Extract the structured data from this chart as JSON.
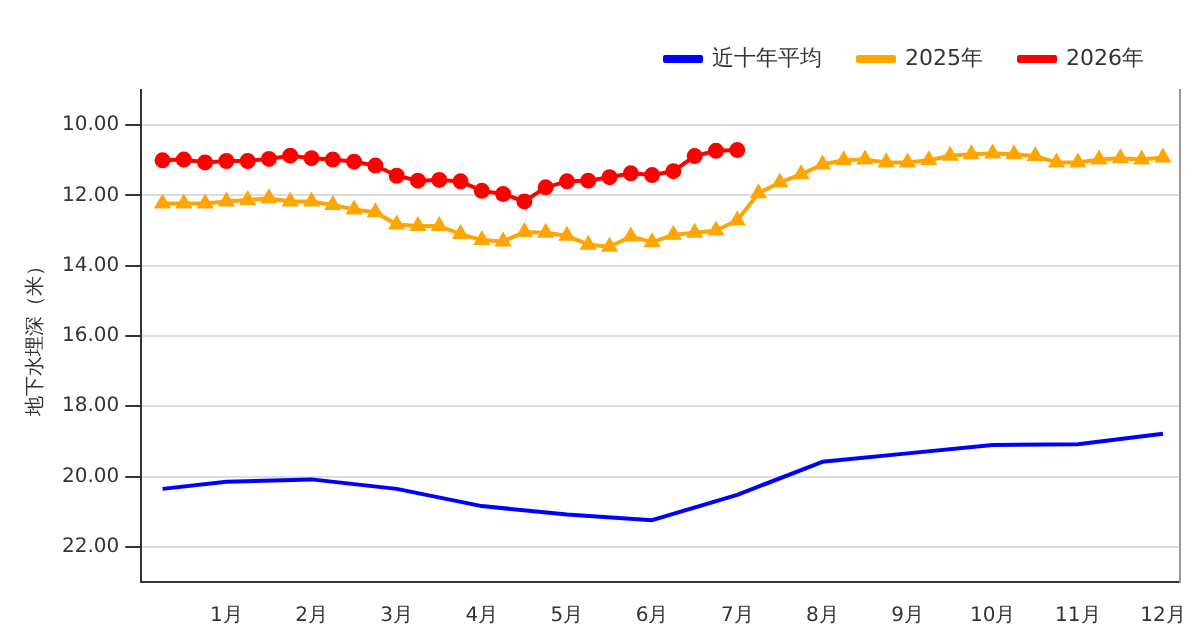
{
  "chart_data": {
    "type": "line",
    "ylabel": "地下水埋深（米）",
    "legend": "top right",
    "grid": "y",
    "xlim": [
      0,
      12.2
    ],
    "xticks": [
      {
        "value": 1,
        "label": "1月"
      },
      {
        "value": 2,
        "label": "2月"
      },
      {
        "value": 3,
        "label": "3月"
      },
      {
        "value": 4,
        "label": "4月"
      },
      {
        "value": 5,
        "label": "5月"
      },
      {
        "value": 6,
        "label": "6月"
      },
      {
        "value": 7,
        "label": "7月"
      },
      {
        "value": 8,
        "label": "8月"
      },
      {
        "value": 9,
        "label": "9月"
      },
      {
        "value": 10,
        "label": "10月"
      },
      {
        "value": 11,
        "label": "11月"
      },
      {
        "value": 12,
        "label": "12月"
      }
    ],
    "ylim": [
      23,
      9
    ],
    "yticks": [
      {
        "value": 10,
        "label": "10.00"
      },
      {
        "value": 12,
        "label": "12.00"
      },
      {
        "value": 14,
        "label": "14.00"
      },
      {
        "value": 16,
        "label": "16.00"
      },
      {
        "value": 18,
        "label": "18.00"
      },
      {
        "value": 20,
        "label": "20.00"
      },
      {
        "value": 22,
        "label": "22.00"
      }
    ],
    "series": [
      {
        "name": "近十年平均",
        "color": "#0000ff",
        "marker": "none",
        "x": [
          0.25,
          1,
          2,
          3,
          4,
          5,
          6,
          7,
          8,
          9,
          10,
          11,
          12
        ],
        "values": [
          20.35,
          20.15,
          20.08,
          20.35,
          20.84,
          21.08,
          21.24,
          20.52,
          19.58,
          19.34,
          19.1,
          19.08,
          18.78
        ]
      },
      {
        "name": "2025年",
        "color": "#ffa500",
        "marker": "triangle",
        "x": [
          0.25,
          0.5,
          0.75,
          1,
          1.25,
          1.5,
          1.75,
          2,
          2.25,
          2.5,
          2.75,
          3,
          3.25,
          3.5,
          3.75,
          4,
          4.25,
          4.5,
          4.75,
          5,
          5.25,
          5.5,
          5.75,
          6,
          6.25,
          6.5,
          6.75,
          7,
          7.25,
          7.5,
          7.75,
          8,
          8.25,
          8.5,
          8.75,
          9,
          9.25,
          9.5,
          9.75,
          10,
          10.25,
          10.5,
          10.75,
          11,
          11.25,
          11.5,
          11.75,
          12
        ],
        "values": [
          12.23,
          12.23,
          12.23,
          12.17,
          12.13,
          12.08,
          12.17,
          12.17,
          12.27,
          12.4,
          12.48,
          12.83,
          12.87,
          12.87,
          13.1,
          13.27,
          13.31,
          13.04,
          13.06,
          13.15,
          13.4,
          13.46,
          13.17,
          13.33,
          13.12,
          13.06,
          13.0,
          12.71,
          11.94,
          11.63,
          11.4,
          11.12,
          11.0,
          10.98,
          11.06,
          11.06,
          11.0,
          10.87,
          10.83,
          10.81,
          10.83,
          10.88,
          11.06,
          11.06,
          10.98,
          10.94,
          10.98,
          10.92
        ]
      },
      {
        "name": "2026年",
        "color": "#ff0000",
        "marker": "circle",
        "x": [
          0.25,
          0.5,
          0.75,
          1,
          1.25,
          1.5,
          1.75,
          2,
          2.25,
          2.5,
          2.75,
          3,
          3.25,
          3.5,
          3.75,
          4,
          4.25,
          4.5,
          4.75,
          5,
          5.25,
          5.5,
          5.75,
          6,
          6.25,
          6.5,
          6.75,
          7
        ],
        "values": [
          11.0,
          10.98,
          11.06,
          11.02,
          11.02,
          10.96,
          10.87,
          10.94,
          10.98,
          11.04,
          11.15,
          11.44,
          11.58,
          11.56,
          11.6,
          11.87,
          11.96,
          12.17,
          11.77,
          11.6,
          11.58,
          11.48,
          11.37,
          11.42,
          11.31,
          10.88,
          10.73,
          10.71
        ]
      }
    ]
  }
}
